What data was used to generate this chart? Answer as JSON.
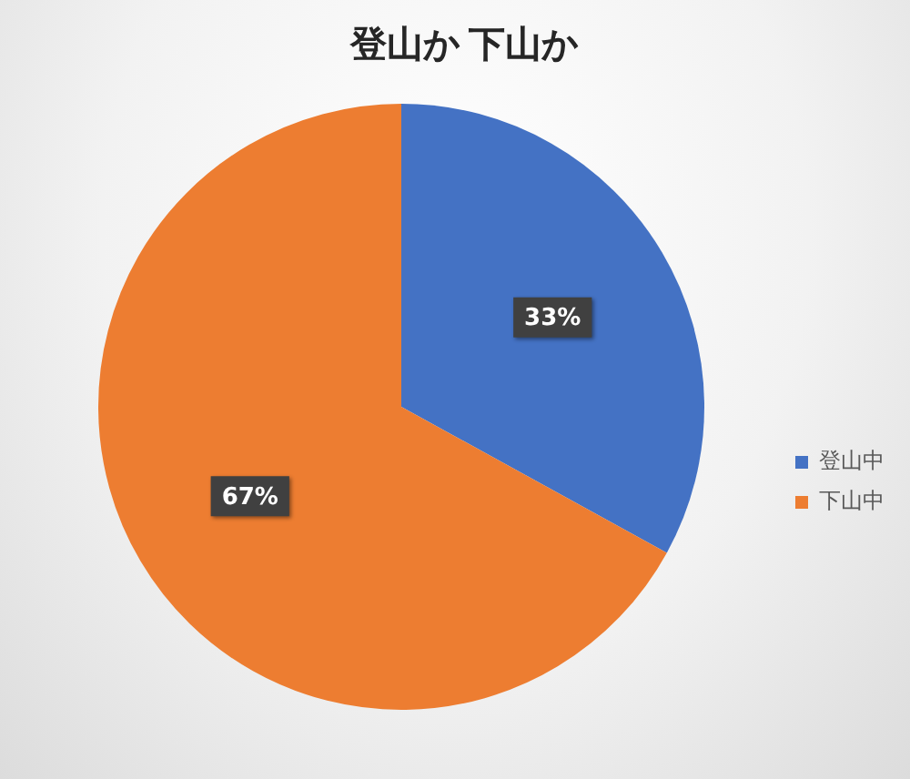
{
  "chart_data": {
    "type": "pie",
    "title": "登山か 下山か",
    "categories": [
      "登山中",
      "下山中"
    ],
    "values": [
      33,
      67
    ],
    "colors": [
      "#4472c4",
      "#ed7d31"
    ],
    "value_labels": [
      "33%",
      "67%"
    ],
    "legend": "right"
  }
}
